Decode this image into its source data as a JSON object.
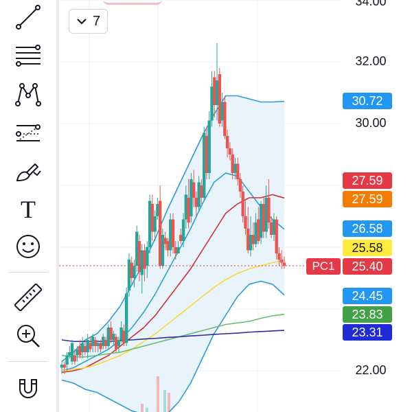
{
  "toolbar": {
    "tools": [
      {
        "icon": "trend-line-icon"
      },
      {
        "icon": "fib-retracement-icon"
      },
      {
        "icon": "pattern-icon"
      },
      {
        "icon": "prediction-icon"
      },
      {
        "icon": "brush-icon"
      },
      {
        "icon": "text-tool-icon",
        "glyph": "T"
      },
      {
        "icon": "emoji-icon"
      },
      {
        "icon": "ruler-icon"
      },
      {
        "icon": "zoom-in-icon"
      },
      {
        "icon": "magnet-icon"
      }
    ]
  },
  "interval_button": {
    "value": "7",
    "icon": "chevron-down-icon"
  },
  "price_axis": {
    "labels": [
      "34.00",
      "32.00",
      "30.00",
      "22.00"
    ],
    "badges": [
      {
        "name": "upper-band",
        "value": "30.72",
        "bg": "#2196f3",
        "fg": "#ffffff"
      },
      {
        "name": "ma-red-1",
        "value": "27.59",
        "bg": "#e53945",
        "fg": "#ffffff"
      },
      {
        "name": "ma-orange",
        "value": "27.59",
        "bg": "#f57c00",
        "fg": "#ffffff"
      },
      {
        "name": "mid-band",
        "value": "26.58",
        "bg": "#2196f3",
        "fg": "#ffffff"
      },
      {
        "name": "ma-yellow",
        "value": "25.58",
        "bg": "#ffeb3b",
        "fg": "#131722"
      },
      {
        "name": "last-price",
        "value": "25.40",
        "bg": "#e53945",
        "fg": "#ffffff"
      },
      {
        "name": "lower-band",
        "value": "24.45",
        "bg": "#2196f3",
        "fg": "#ffffff"
      },
      {
        "name": "ma-green",
        "value": "23.83",
        "bg": "#43a047",
        "fg": "#ffffff"
      },
      {
        "name": "ma-navy",
        "value": "23.31",
        "bg": "#1e2bd6",
        "fg": "#ffffff"
      }
    ],
    "price_line_tag": "PC1"
  },
  "chart_data": {
    "type": "candlestick",
    "ylim": [
      21.0,
      34.0
    ],
    "y_ticks": [
      22,
      24,
      26,
      28,
      30,
      32,
      34
    ],
    "colors": {
      "up": "#26a69a",
      "down": "#ef5350",
      "upper_band": "#2d9bd6",
      "mid_band": "#26a3d8",
      "ma_red": "#d32f2f",
      "ma_yellow": "#fdd835",
      "ma_green": "#66bb6a",
      "ma_navy": "#2e2b9e",
      "band_fill": "#e9f3fc"
    },
    "candles": [
      [
        22.1,
        22.2,
        21.9,
        22.3
      ],
      [
        22.2,
        22.1,
        21.9,
        22.3
      ],
      [
        22.2,
        22.5,
        22.0,
        22.6
      ],
      [
        22.5,
        22.6,
        22.4,
        22.8
      ],
      [
        22.3,
        22.9,
        22.2,
        23.0
      ],
      [
        22.5,
        22.3,
        22.2,
        22.7
      ],
      [
        22.5,
        22.7,
        22.3,
        22.8
      ],
      [
        22.8,
        22.5,
        22.4,
        23.0
      ],
      [
        22.6,
        22.9,
        22.4,
        23.1
      ],
      [
        22.8,
        22.6,
        22.5,
        23.0
      ],
      [
        22.6,
        23.0,
        22.4,
        23.2
      ],
      [
        22.9,
        22.7,
        22.6,
        23.1
      ],
      [
        22.8,
        23.1,
        22.6,
        23.2
      ],
      [
        23.0,
        22.8,
        22.6,
        23.1
      ],
      [
        22.8,
        22.9,
        22.6,
        23.0
      ],
      [
        22.9,
        22.7,
        22.6,
        23.0
      ],
      [
        22.8,
        23.1,
        22.7,
        23.2
      ],
      [
        23.0,
        22.8,
        22.7,
        23.1
      ],
      [
        22.8,
        23.4,
        22.7,
        23.5
      ],
      [
        23.4,
        23.0,
        22.9,
        23.6
      ],
      [
        23.0,
        23.2,
        22.8,
        23.3
      ],
      [
        23.1,
        22.7,
        22.6,
        23.2
      ],
      [
        22.8,
        23.0,
        22.6,
        23.1
      ],
      [
        23.0,
        23.4,
        22.9,
        23.6
      ],
      [
        23.3,
        22.9,
        22.8,
        23.5
      ],
      [
        22.9,
        24.5,
        22.8,
        24.7
      ],
      [
        24.6,
        25.6,
        24.4,
        25.8
      ],
      [
        25.5,
        25.0,
        24.8,
        25.7
      ],
      [
        25.0,
        25.4,
        24.7,
        25.6
      ],
      [
        25.4,
        26.5,
        25.2,
        26.7
      ],
      [
        26.2,
        25.2,
        24.9,
        26.4
      ],
      [
        25.1,
        25.9,
        24.5,
        26.1
      ],
      [
        25.9,
        25.3,
        24.9,
        26.1
      ],
      [
        25.4,
        26.0,
        25.0,
        26.2
      ],
      [
        26.0,
        27.5,
        25.8,
        27.7
      ],
      [
        27.4,
        26.5,
        26.2,
        27.7
      ],
      [
        26.5,
        27.0,
        26.2,
        27.2
      ],
      [
        27.0,
        27.4,
        26.9,
        27.6
      ],
      [
        27.5,
        25.4,
        25.3,
        28.0
      ],
      [
        25.4,
        26.4,
        25.3,
        26.6
      ],
      [
        26.3,
        26.1,
        25.9,
        26.5
      ],
      [
        26.2,
        25.9,
        25.7,
        26.3
      ],
      [
        25.9,
        26.9,
        25.7,
        27.1
      ],
      [
        26.9,
        26.0,
        25.8,
        27.1
      ],
      [
        26.0,
        25.8,
        25.6,
        26.2
      ],
      [
        25.8,
        26.0,
        25.8,
        26.2
      ],
      [
        26.4,
        26.2,
        26.1,
        26.6
      ],
      [
        26.2,
        26.9,
        26.0,
        27.1
      ],
      [
        26.9,
        27.7,
        26.6,
        28.0
      ],
      [
        27.6,
        26.8,
        26.6,
        28.2
      ],
      [
        27.0,
        28.2,
        26.8,
        28.4
      ],
      [
        28.1,
        27.6,
        27.3,
        28.5
      ],
      [
        27.6,
        27.3,
        27.0,
        27.8
      ],
      [
        27.3,
        28.1,
        27.2,
        28.3
      ],
      [
        28.0,
        27.6,
        27.4,
        28.2
      ],
      [
        27.6,
        29.7,
        27.5,
        29.9
      ],
      [
        29.6,
        28.4,
        28.2,
        29.9
      ],
      [
        28.4,
        30.1,
        28.2,
        30.4
      ],
      [
        30.1,
        31.2,
        29.9,
        31.7
      ],
      [
        31.5,
        30.6,
        30.2,
        31.7
      ],
      [
        30.6,
        31.4,
        30.1,
        32.6
      ],
      [
        31.6,
        30.0,
        29.9,
        31.8
      ],
      [
        30.1,
        30.7,
        29.9,
        31.0
      ],
      [
        30.7,
        29.6,
        29.5,
        30.9
      ],
      [
        29.6,
        29.2,
        28.9,
        29.8
      ],
      [
        29.2,
        29.0,
        28.8,
        29.4
      ],
      [
        29.0,
        28.4,
        28.2,
        29.2
      ],
      [
        28.4,
        28.7,
        28.2,
        28.9
      ],
      [
        28.7,
        28.2,
        28.0,
        28.9
      ],
      [
        28.2,
        27.8,
        27.6,
        28.4
      ],
      [
        27.8,
        27.0,
        26.8,
        28.0
      ],
      [
        27.0,
        26.6,
        26.4,
        27.5
      ],
      [
        26.6,
        25.9,
        25.8,
        27.3
      ],
      [
        25.9,
        26.4,
        25.7,
        27.0
      ],
      [
        26.4,
        26.1,
        25.9,
        26.8
      ],
      [
        26.1,
        26.8,
        26.0,
        27.1
      ],
      [
        26.9,
        26.2,
        26.1,
        27.3
      ],
      [
        26.3,
        27.4,
        26.1,
        27.5
      ],
      [
        27.4,
        26.5,
        26.3,
        27.6
      ],
      [
        26.5,
        27.6,
        26.3,
        28.0
      ],
      [
        27.6,
        26.8,
        26.6,
        28.2
      ],
      [
        26.8,
        26.4,
        26.3,
        27.0
      ],
      [
        26.4,
        26.9,
        26.2,
        27.1
      ],
      [
        26.9,
        25.8,
        25.6,
        27.0
      ],
      [
        25.8,
        25.6,
        25.4,
        26.0
      ],
      [
        25.6,
        25.5,
        25.3,
        25.9
      ],
      [
        25.5,
        25.4,
        25.3,
        25.7
      ]
    ],
    "series": [
      {
        "name": "upper-band",
        "y": [
          22.3,
          22.6,
          23.0,
          23.2,
          23.6,
          24.1,
          24.8,
          25.5,
          26.3,
          27.2,
          28.0,
          28.8,
          29.6,
          30.3,
          30.9,
          30.9,
          30.8,
          30.7,
          30.7,
          30.72
        ]
      },
      {
        "name": "mid-band",
        "y": [
          22.0,
          22.1,
          22.3,
          22.5,
          22.7,
          23.0,
          23.4,
          23.9,
          24.5,
          25.2,
          25.9,
          26.6,
          27.4,
          28.1,
          28.4,
          28.3,
          27.8,
          27.3,
          26.9,
          26.58
        ]
      },
      {
        "name": "lower-band",
        "y": [
          21.7,
          21.6,
          21.4,
          21.3,
          21.1,
          20.9,
          20.7,
          20.6,
          20.5,
          20.6,
          21.0,
          21.6,
          22.4,
          23.2,
          23.8,
          24.4,
          24.8,
          24.9,
          24.8,
          24.45
        ]
      },
      {
        "name": "ma-red",
        "y": [
          21.95,
          22.0,
          22.1,
          22.3,
          22.5,
          22.8,
          23.1,
          23.4,
          23.8,
          24.3,
          24.8,
          25.3,
          25.9,
          26.5,
          27.1,
          27.4,
          27.6,
          27.6,
          27.7,
          27.59
        ]
      },
      {
        "name": "ma-yellow",
        "y": [
          22.0,
          22.05,
          22.1,
          22.2,
          22.35,
          22.5,
          22.7,
          22.95,
          23.2,
          23.5,
          23.8,
          24.1,
          24.4,
          24.7,
          24.95,
          25.15,
          25.3,
          25.4,
          25.5,
          25.58
        ]
      },
      {
        "name": "ma-green",
        "y": [
          22.5,
          22.45,
          22.45,
          22.5,
          22.55,
          22.6,
          22.7,
          22.8,
          22.9,
          23.0,
          23.1,
          23.2,
          23.3,
          23.4,
          23.5,
          23.55,
          23.6,
          23.7,
          23.78,
          23.83
        ]
      },
      {
        "name": "ma-navy",
        "y": [
          23.0,
          22.95,
          22.95,
          22.95,
          22.95,
          22.98,
          23.0,
          23.03,
          23.05,
          23.08,
          23.1,
          23.13,
          23.15,
          23.18,
          23.2,
          23.22,
          23.25,
          23.27,
          23.29,
          23.31
        ]
      }
    ],
    "last_price": 25.4
  }
}
